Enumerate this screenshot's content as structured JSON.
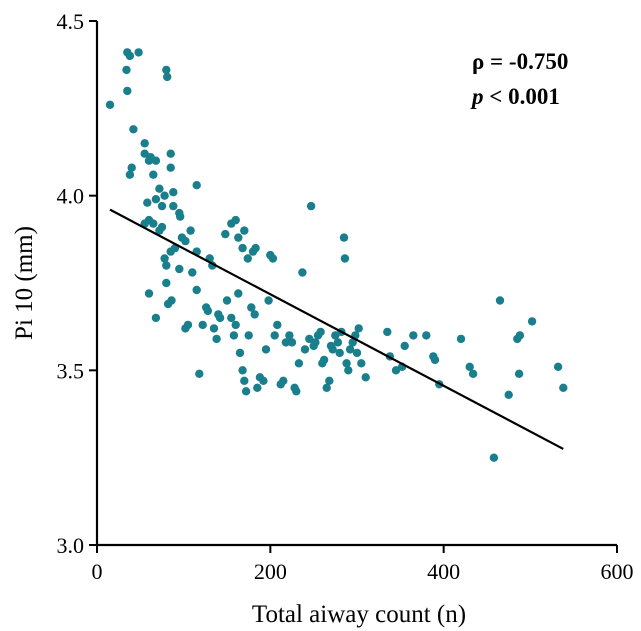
{
  "chart_data": {
    "type": "scatter",
    "xlabel": "Total aiway count (n)",
    "ylabel": "Pi 10 (mm)",
    "xlim": [
      0,
      600
    ],
    "ylim": [
      3.0,
      4.5
    ],
    "xticks": [
      "0",
      "200",
      "400",
      "600"
    ],
    "yticks": [
      "3.0",
      "3.5",
      "4.0",
      "4.5"
    ],
    "grid": false,
    "colors": {
      "points": "#1a7f8c",
      "line": "#000000"
    },
    "annotations": {
      "rho": "ρ = -0.750",
      "p_italic": "p",
      "p_rest": " < 0.001"
    },
    "trend_line": {
      "x": [
        15,
        538
      ],
      "y": [
        3.96,
        3.275
      ]
    },
    "points": [
      [
        15,
        4.26
      ],
      [
        35,
        4.41
      ],
      [
        38,
        4.4
      ],
      [
        48,
        4.41
      ],
      [
        34,
        4.36
      ],
      [
        35,
        4.3
      ],
      [
        80,
        4.36
      ],
      [
        81,
        4.34
      ],
      [
        42,
        4.19
      ],
      [
        55,
        4.15
      ],
      [
        38,
        4.06
      ],
      [
        40,
        4.08
      ],
      [
        55,
        4.12
      ],
      [
        60,
        4.1
      ],
      [
        62,
        4.11
      ],
      [
        65,
        4.06
      ],
      [
        68,
        4.1
      ],
      [
        72,
        4.02
      ],
      [
        78,
        4.0
      ],
      [
        85,
        4.12
      ],
      [
        88,
        4.01
      ],
      [
        85,
        4.08
      ],
      [
        95,
        3.95
      ],
      [
        115,
        4.03
      ],
      [
        58,
        3.98
      ],
      [
        68,
        3.99
      ],
      [
        75,
        3.97
      ],
      [
        88,
        3.97
      ],
      [
        55,
        3.92
      ],
      [
        60,
        3.93
      ],
      [
        65,
        3.92
      ],
      [
        72,
        3.9
      ],
      [
        75,
        3.91
      ],
      [
        78,
        3.82
      ],
      [
        80,
        3.8
      ],
      [
        85,
        3.84
      ],
      [
        90,
        3.85
      ],
      [
        96,
        3.94
      ],
      [
        98,
        3.88
      ],
      [
        102,
        3.87
      ],
      [
        108,
        3.9
      ],
      [
        115,
        3.84
      ],
      [
        60,
        3.72
      ],
      [
        68,
        3.65
      ],
      [
        80,
        3.75
      ],
      [
        82,
        3.69
      ],
      [
        86,
        3.7
      ],
      [
        95,
        3.79
      ],
      [
        102,
        3.62
      ],
      [
        105,
        3.63
      ],
      [
        110,
        3.78
      ],
      [
        115,
        3.73
      ],
      [
        118,
        3.49
      ],
      [
        122,
        3.63
      ],
      [
        126,
        3.68
      ],
      [
        128,
        3.67
      ],
      [
        130,
        3.82
      ],
      [
        133,
        3.8
      ],
      [
        135,
        3.62
      ],
      [
        138,
        3.59
      ],
      [
        140,
        3.66
      ],
      [
        142,
        3.65
      ],
      [
        148,
        3.89
      ],
      [
        155,
        3.92
      ],
      [
        160,
        3.93
      ],
      [
        163,
        3.88
      ],
      [
        168,
        3.85
      ],
      [
        170,
        3.9
      ],
      [
        174,
        3.82
      ],
      [
        180,
        3.84
      ],
      [
        183,
        3.85
      ],
      [
        150,
        3.7
      ],
      [
        155,
        3.65
      ],
      [
        158,
        3.6
      ],
      [
        160,
        3.63
      ],
      [
        163,
        3.72
      ],
      [
        165,
        3.55
      ],
      [
        168,
        3.5
      ],
      [
        170,
        3.47
      ],
      [
        172,
        3.44
      ],
      [
        175,
        3.6
      ],
      [
        178,
        3.68
      ],
      [
        182,
        3.66
      ],
      [
        185,
        3.45
      ],
      [
        188,
        3.48
      ],
      [
        192,
        3.47
      ],
      [
        195,
        3.56
      ],
      [
        198,
        3.7
      ],
      [
        200,
        3.83
      ],
      [
        203,
        3.82
      ],
      [
        205,
        3.6
      ],
      [
        208,
        3.63
      ],
      [
        212,
        3.46
      ],
      [
        215,
        3.47
      ],
      [
        218,
        3.58
      ],
      [
        222,
        3.6
      ],
      [
        225,
        3.58
      ],
      [
        228,
        3.45
      ],
      [
        230,
        3.44
      ],
      [
        233,
        3.52
      ],
      [
        237,
        3.78
      ],
      [
        240,
        3.56
      ],
      [
        245,
        3.59
      ],
      [
        247,
        3.97
      ],
      [
        250,
        3.57
      ],
      [
        252,
        3.58
      ],
      [
        255,
        3.6
      ],
      [
        258,
        3.61
      ],
      [
        260,
        3.52
      ],
      [
        262,
        3.53
      ],
      [
        265,
        3.45
      ],
      [
        268,
        3.47
      ],
      [
        270,
        3.57
      ],
      [
        272,
        3.56
      ],
      [
        275,
        3.6
      ],
      [
        278,
        3.58
      ],
      [
        280,
        3.55
      ],
      [
        282,
        3.61
      ],
      [
        285,
        3.88
      ],
      [
        286,
        3.82
      ],
      [
        288,
        3.52
      ],
      [
        290,
        3.5
      ],
      [
        292,
        3.56
      ],
      [
        295,
        3.58
      ],
      [
        298,
        3.6
      ],
      [
        300,
        3.55
      ],
      [
        302,
        3.62
      ],
      [
        305,
        3.52
      ],
      [
        310,
        3.48
      ],
      [
        335,
        3.61
      ],
      [
        338,
        3.54
      ],
      [
        345,
        3.5
      ],
      [
        352,
        3.51
      ],
      [
        355,
        3.57
      ],
      [
        365,
        3.6
      ],
      [
        380,
        3.6
      ],
      [
        388,
        3.54
      ],
      [
        390,
        3.53
      ],
      [
        395,
        3.46
      ],
      [
        420,
        3.59
      ],
      [
        430,
        3.51
      ],
      [
        434,
        3.49
      ],
      [
        458,
        3.25
      ],
      [
        465,
        3.7
      ],
      [
        475,
        3.43
      ],
      [
        485,
        3.59
      ],
      [
        487,
        3.49
      ],
      [
        488,
        3.6
      ],
      [
        502,
        3.64
      ],
      [
        532,
        3.51
      ],
      [
        538,
        3.45
      ]
    ]
  }
}
